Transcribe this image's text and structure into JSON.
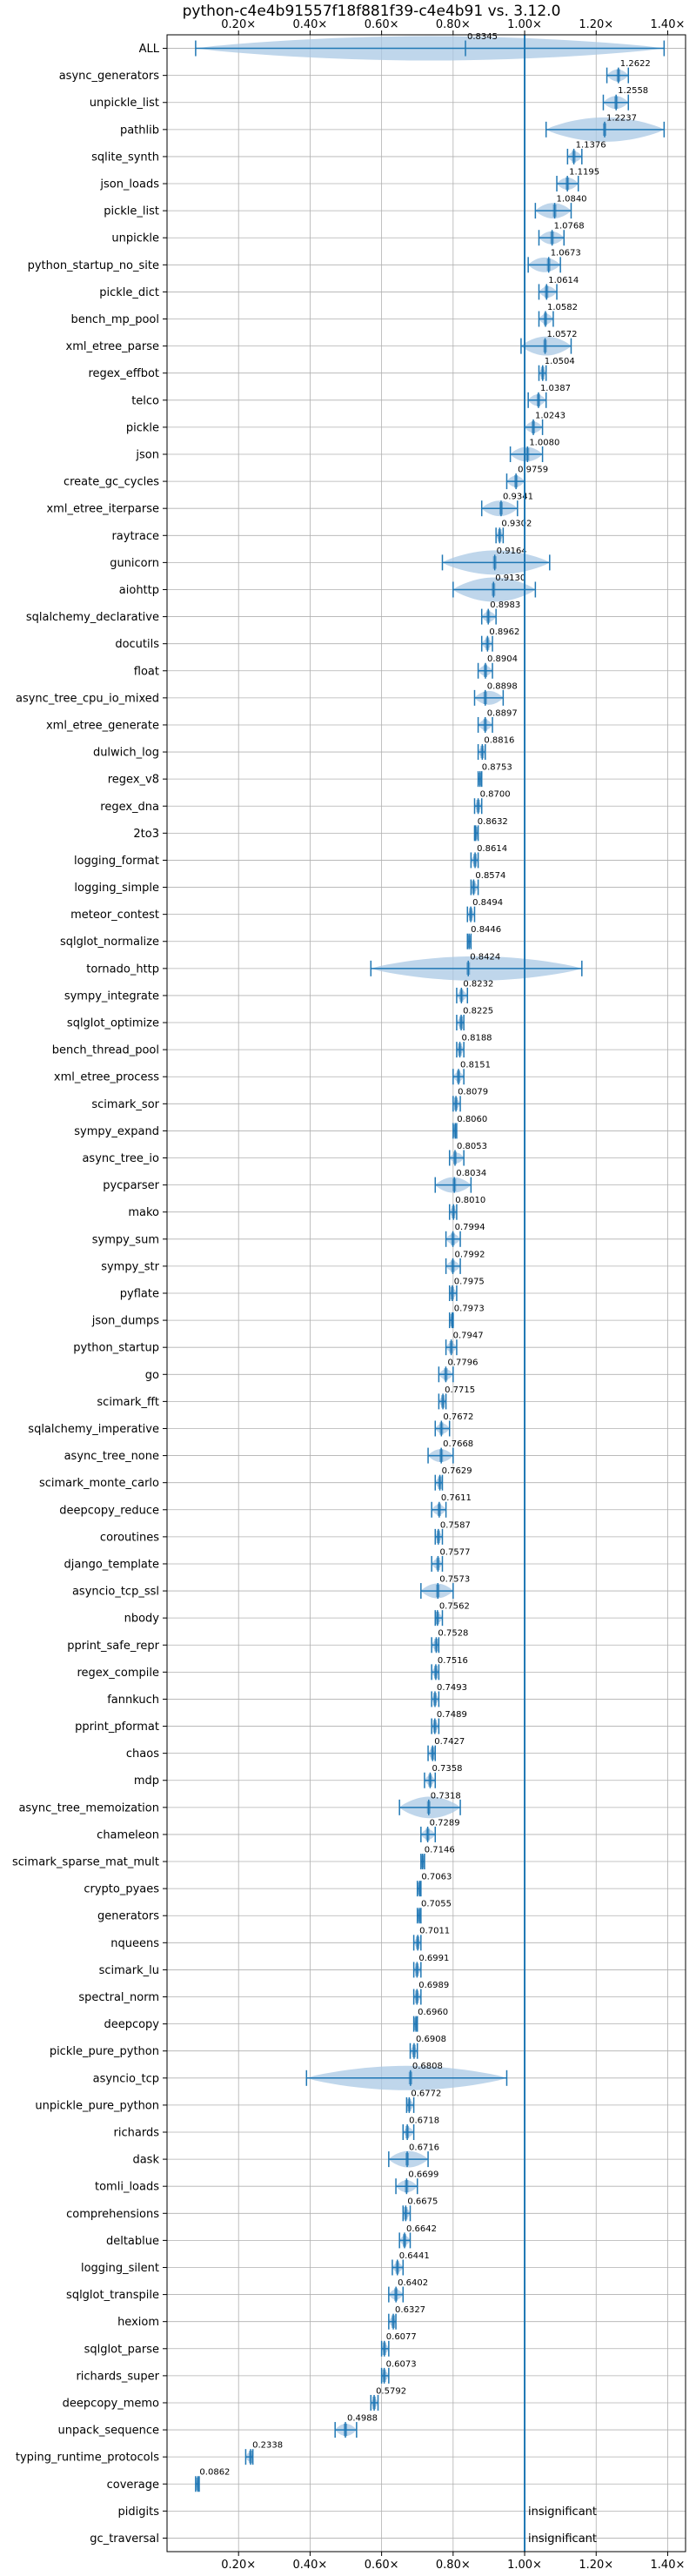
{
  "chart_data": {
    "type": "violin",
    "title": "python-c4e4b91557f18f881f39-c4e4b91 vs. 3.12.0",
    "xlim": [
      0.0,
      1.45
    ],
    "xticks": [
      0.2,
      0.4,
      0.6,
      0.8,
      1.0,
      1.2,
      1.4
    ],
    "xtick_format": "×",
    "reference_line": 1.0,
    "grid": true,
    "colors": {
      "violin": "#aac8e4",
      "whisker": "#1f77b4",
      "refline": "#1f77b4",
      "grid": "#b0b0b0"
    },
    "benchmarks": [
      {
        "name": "ALL",
        "value": 0.8345,
        "min": 0.08,
        "max": 1.39
      },
      {
        "name": "async_generators",
        "value": 1.2622,
        "min": 1.23,
        "max": 1.29
      },
      {
        "name": "unpickle_list",
        "value": 1.2558,
        "min": 1.22,
        "max": 1.29
      },
      {
        "name": "pathlib",
        "value": 1.2237,
        "min": 1.06,
        "max": 1.39
      },
      {
        "name": "sqlite_synth",
        "value": 1.1376,
        "min": 1.12,
        "max": 1.16
      },
      {
        "name": "json_loads",
        "value": 1.1195,
        "min": 1.09,
        "max": 1.15
      },
      {
        "name": "pickle_list",
        "value": 1.084,
        "min": 1.03,
        "max": 1.13
      },
      {
        "name": "unpickle",
        "value": 1.0768,
        "min": 1.04,
        "max": 1.11
      },
      {
        "name": "python_startup_no_site",
        "value": 1.0673,
        "min": 1.01,
        "max": 1.1
      },
      {
        "name": "pickle_dict",
        "value": 1.0614,
        "min": 1.04,
        "max": 1.09
      },
      {
        "name": "bench_mp_pool",
        "value": 1.0582,
        "min": 1.04,
        "max": 1.08
      },
      {
        "name": "xml_etree_parse",
        "value": 1.0572,
        "min": 0.99,
        "max": 1.13
      },
      {
        "name": "regex_effbot",
        "value": 1.0504,
        "min": 1.04,
        "max": 1.06
      },
      {
        "name": "telco",
        "value": 1.0387,
        "min": 1.01,
        "max": 1.06
      },
      {
        "name": "pickle",
        "value": 1.0243,
        "min": 1.0,
        "max": 1.05
      },
      {
        "name": "json",
        "value": 1.008,
        "min": 0.96,
        "max": 1.05
      },
      {
        "name": "create_gc_cycles",
        "value": 0.9759,
        "min": 0.95,
        "max": 1.0
      },
      {
        "name": "xml_etree_iterparse",
        "value": 0.9341,
        "min": 0.88,
        "max": 0.98
      },
      {
        "name": "raytrace",
        "value": 0.9302,
        "min": 0.92,
        "max": 0.94
      },
      {
        "name": "gunicorn",
        "value": 0.9164,
        "min": 0.77,
        "max": 1.07
      },
      {
        "name": "aiohttp",
        "value": 0.913,
        "min": 0.8,
        "max": 1.03
      },
      {
        "name": "sqlalchemy_declarative",
        "value": 0.8983,
        "min": 0.88,
        "max": 0.92
      },
      {
        "name": "docutils",
        "value": 0.8962,
        "min": 0.88,
        "max": 0.91
      },
      {
        "name": "float",
        "value": 0.8904,
        "min": 0.87,
        "max": 0.91
      },
      {
        "name": "async_tree_cpu_io_mixed",
        "value": 0.8898,
        "min": 0.86,
        "max": 0.94
      },
      {
        "name": "xml_etree_generate",
        "value": 0.8897,
        "min": 0.87,
        "max": 0.91
      },
      {
        "name": "dulwich_log",
        "value": 0.8816,
        "min": 0.87,
        "max": 0.89
      },
      {
        "name": "regex_v8",
        "value": 0.8753,
        "min": 0.87,
        "max": 0.88
      },
      {
        "name": "regex_dna",
        "value": 0.87,
        "min": 0.86,
        "max": 0.88
      },
      {
        "name": "2to3",
        "value": 0.8632,
        "min": 0.86,
        "max": 0.87
      },
      {
        "name": "logging_format",
        "value": 0.8614,
        "min": 0.85,
        "max": 0.87
      },
      {
        "name": "logging_simple",
        "value": 0.8574,
        "min": 0.85,
        "max": 0.87
      },
      {
        "name": "meteor_contest",
        "value": 0.8494,
        "min": 0.84,
        "max": 0.86
      },
      {
        "name": "sqlglot_normalize",
        "value": 0.8446,
        "min": 0.84,
        "max": 0.85
      },
      {
        "name": "tornado_http",
        "value": 0.8424,
        "min": 0.57,
        "max": 1.16
      },
      {
        "name": "sympy_integrate",
        "value": 0.8232,
        "min": 0.81,
        "max": 0.84
      },
      {
        "name": "sqlglot_optimize",
        "value": 0.8225,
        "min": 0.81,
        "max": 0.83
      },
      {
        "name": "bench_thread_pool",
        "value": 0.8188,
        "min": 0.81,
        "max": 0.83
      },
      {
        "name": "xml_etree_process",
        "value": 0.8151,
        "min": 0.8,
        "max": 0.83
      },
      {
        "name": "scimark_sor",
        "value": 0.8079,
        "min": 0.8,
        "max": 0.82
      },
      {
        "name": "sympy_expand",
        "value": 0.806,
        "min": 0.8,
        "max": 0.81
      },
      {
        "name": "async_tree_io",
        "value": 0.8053,
        "min": 0.79,
        "max": 0.83
      },
      {
        "name": "pycparser",
        "value": 0.8034,
        "min": 0.75,
        "max": 0.85
      },
      {
        "name": "mako",
        "value": 0.801,
        "min": 0.79,
        "max": 0.81
      },
      {
        "name": "sympy_sum",
        "value": 0.7994,
        "min": 0.78,
        "max": 0.82
      },
      {
        "name": "sympy_str",
        "value": 0.7992,
        "min": 0.78,
        "max": 0.82
      },
      {
        "name": "pyflate",
        "value": 0.7975,
        "min": 0.79,
        "max": 0.81
      },
      {
        "name": "json_dumps",
        "value": 0.7973,
        "min": 0.79,
        "max": 0.8
      },
      {
        "name": "python_startup",
        "value": 0.7947,
        "min": 0.78,
        "max": 0.81
      },
      {
        "name": "go",
        "value": 0.7796,
        "min": 0.76,
        "max": 0.8
      },
      {
        "name": "scimark_fft",
        "value": 0.7715,
        "min": 0.76,
        "max": 0.78
      },
      {
        "name": "sqlalchemy_imperative",
        "value": 0.7672,
        "min": 0.75,
        "max": 0.79
      },
      {
        "name": "async_tree_none",
        "value": 0.7668,
        "min": 0.73,
        "max": 0.8
      },
      {
        "name": "scimark_monte_carlo",
        "value": 0.7629,
        "min": 0.75,
        "max": 0.77
      },
      {
        "name": "deepcopy_reduce",
        "value": 0.7611,
        "min": 0.74,
        "max": 0.78
      },
      {
        "name": "coroutines",
        "value": 0.7587,
        "min": 0.75,
        "max": 0.77
      },
      {
        "name": "django_template",
        "value": 0.7577,
        "min": 0.74,
        "max": 0.77
      },
      {
        "name": "asyncio_tcp_ssl",
        "value": 0.7573,
        "min": 0.71,
        "max": 0.8
      },
      {
        "name": "nbody",
        "value": 0.7562,
        "min": 0.75,
        "max": 0.77
      },
      {
        "name": "pprint_safe_repr",
        "value": 0.7528,
        "min": 0.74,
        "max": 0.76
      },
      {
        "name": "regex_compile",
        "value": 0.7516,
        "min": 0.74,
        "max": 0.76
      },
      {
        "name": "fannkuch",
        "value": 0.7493,
        "min": 0.74,
        "max": 0.76
      },
      {
        "name": "pprint_pformat",
        "value": 0.7489,
        "min": 0.74,
        "max": 0.76
      },
      {
        "name": "chaos",
        "value": 0.7427,
        "min": 0.73,
        "max": 0.75
      },
      {
        "name": "mdp",
        "value": 0.7358,
        "min": 0.72,
        "max": 0.75
      },
      {
        "name": "async_tree_memoization",
        "value": 0.7318,
        "min": 0.65,
        "max": 0.82
      },
      {
        "name": "chameleon",
        "value": 0.7289,
        "min": 0.71,
        "max": 0.75
      },
      {
        "name": "scimark_sparse_mat_mult",
        "value": 0.7146,
        "min": 0.71,
        "max": 0.72
      },
      {
        "name": "crypto_pyaes",
        "value": 0.7063,
        "min": 0.7,
        "max": 0.71
      },
      {
        "name": "generators",
        "value": 0.7055,
        "min": 0.7,
        "max": 0.71
      },
      {
        "name": "nqueens",
        "value": 0.7011,
        "min": 0.69,
        "max": 0.71
      },
      {
        "name": "scimark_lu",
        "value": 0.6991,
        "min": 0.69,
        "max": 0.71
      },
      {
        "name": "spectral_norm",
        "value": 0.6989,
        "min": 0.69,
        "max": 0.71
      },
      {
        "name": "deepcopy",
        "value": 0.696,
        "min": 0.69,
        "max": 0.7
      },
      {
        "name": "pickle_pure_python",
        "value": 0.6908,
        "min": 0.68,
        "max": 0.7
      },
      {
        "name": "asyncio_tcp",
        "value": 0.6808,
        "min": 0.39,
        "max": 0.95
      },
      {
        "name": "unpickle_pure_python",
        "value": 0.6772,
        "min": 0.67,
        "max": 0.69
      },
      {
        "name": "richards",
        "value": 0.6718,
        "min": 0.66,
        "max": 0.69
      },
      {
        "name": "dask",
        "value": 0.6716,
        "min": 0.62,
        "max": 0.73
      },
      {
        "name": "tomli_loads",
        "value": 0.6699,
        "min": 0.64,
        "max": 0.7
      },
      {
        "name": "comprehensions",
        "value": 0.6675,
        "min": 0.66,
        "max": 0.68
      },
      {
        "name": "deltablue",
        "value": 0.6642,
        "min": 0.65,
        "max": 0.68
      },
      {
        "name": "logging_silent",
        "value": 0.6441,
        "min": 0.63,
        "max": 0.66
      },
      {
        "name": "sqlglot_transpile",
        "value": 0.6402,
        "min": 0.62,
        "max": 0.66
      },
      {
        "name": "hexiom",
        "value": 0.6327,
        "min": 0.62,
        "max": 0.64
      },
      {
        "name": "sqlglot_parse",
        "value": 0.6077,
        "min": 0.6,
        "max": 0.62
      },
      {
        "name": "richards_super",
        "value": 0.6073,
        "min": 0.6,
        "max": 0.62
      },
      {
        "name": "deepcopy_memo",
        "value": 0.5792,
        "min": 0.57,
        "max": 0.59
      },
      {
        "name": "unpack_sequence",
        "value": 0.4988,
        "min": 0.47,
        "max": 0.53
      },
      {
        "name": "typing_runtime_protocols",
        "value": 0.2338,
        "min": 0.22,
        "max": 0.24
      },
      {
        "name": "coverage",
        "value": 0.0862,
        "min": 0.08,
        "max": 0.09
      },
      {
        "name": "pidigits",
        "value": null,
        "note": "insignificant"
      },
      {
        "name": "gc_traversal",
        "value": null,
        "note": "insignificant"
      }
    ]
  }
}
